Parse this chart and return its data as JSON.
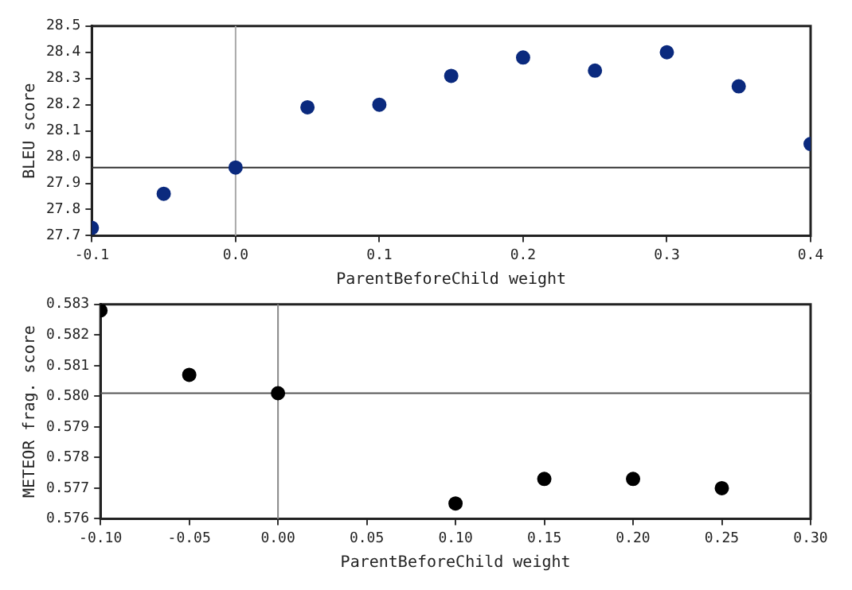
{
  "chart_data": [
    {
      "type": "scatter",
      "xlabel": "ParentBeforeChild weight",
      "ylabel": "BLEU score",
      "x": [
        -0.1,
        -0.05,
        0,
        0.05,
        0.1,
        0.15,
        0.2,
        0.25,
        0.3,
        0.35,
        0.4
      ],
      "series": [
        {
          "color": "#0b2a7e",
          "values": [
            27.73,
            27.86,
            27.96,
            28.19,
            28.2,
            28.31,
            28.38,
            28.33,
            28.4,
            28.27,
            28.05
          ]
        }
      ],
      "xlim": [
        -0.1,
        0.4
      ],
      "ylim": [
        27.7,
        28.5
      ],
      "xticks": [
        -0.1,
        {
          "value": 0,
          "label": "0.0"
        },
        0.1,
        0.2,
        0.3,
        0.4
      ],
      "yticks": [
        27.7,
        27.8,
        27.9,
        {
          "value": 28,
          "label": "28.0"
        },
        28.1,
        28.2,
        28.3,
        28.4,
        28.5
      ],
      "ref_lines": [
        {
          "axis": "x",
          "value": 0,
          "color": "#aaaaaa"
        },
        {
          "axis": "y",
          "value": 27.96,
          "color": "#333333"
        }
      ],
      "marker": "circle",
      "grid": false,
      "legend": false
    },
    {
      "type": "scatter",
      "xlabel": "ParentBeforeChild weight",
      "ylabel": "METEOR frag. score",
      "x": [
        -0.1,
        -0.05,
        0,
        0.1,
        0.15,
        0.2,
        0.25
      ],
      "series": [
        {
          "color": "#000000",
          "values": [
            0.5828,
            0.5807,
            0.5801,
            0.5765,
            0.5773,
            0.5773,
            0.577
          ]
        }
      ],
      "xlim": [
        -0.1,
        0.3
      ],
      "ylim": [
        0.576,
        0.583
      ],
      "xticks": [
        {
          "value": -0.1,
          "label": "-0.10"
        },
        -0.05,
        {
          "value": 0,
          "label": "0.00"
        },
        0.05,
        {
          "value": 0.1,
          "label": "0.10"
        },
        0.15,
        {
          "value": 0.2,
          "label": "0.20"
        },
        0.25,
        {
          "value": 0.3,
          "label": "0.30"
        }
      ],
      "yticks": [
        0.576,
        0.577,
        0.578,
        0.579,
        {
          "value": 0.58,
          "label": "0.580"
        },
        0.581,
        0.582,
        0.583
      ],
      "ref_lines": [
        {
          "axis": "x",
          "value": 0,
          "color": "#888888"
        },
        {
          "axis": "y",
          "value": 0.5801,
          "color": "#555555"
        }
      ],
      "marker": "circle",
      "grid": false,
      "legend": false
    }
  ]
}
